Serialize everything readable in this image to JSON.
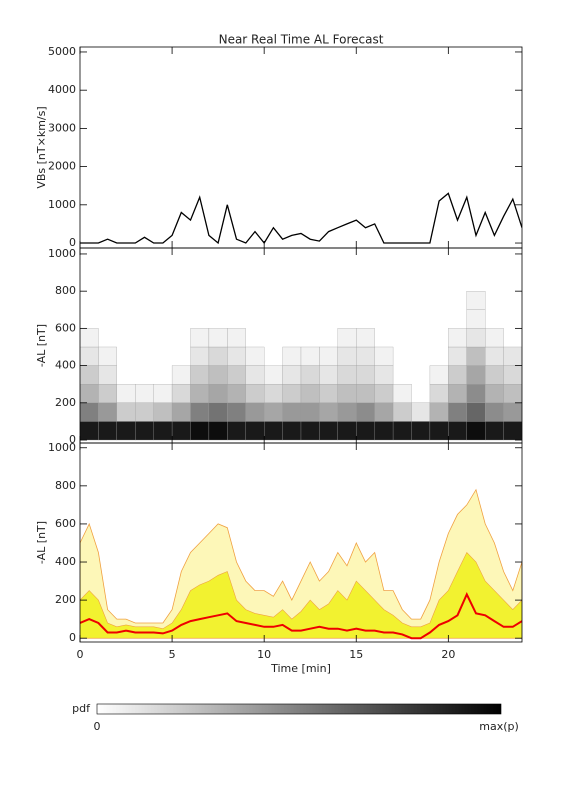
{
  "chart_data": [
    {
      "type": "line",
      "title": "Near Real Time AL Forecast",
      "ylabel": "VBs [nT×km/s]",
      "color": "#000000",
      "x": [
        0,
        0.5,
        1,
        1.5,
        2,
        2.5,
        3,
        3.5,
        4,
        4.5,
        5,
        5.5,
        6,
        6.5,
        7,
        7.5,
        8,
        8.5,
        9,
        9.5,
        10,
        10.5,
        11,
        11.5,
        12,
        12.5,
        13,
        13.5,
        14,
        14.5,
        15,
        15.5,
        16,
        16.5,
        17,
        17.5,
        18,
        18.5,
        19,
        19.5,
        20,
        20.5,
        21,
        21.5,
        22,
        22.5,
        23,
        23.5,
        24
      ],
      "values": [
        0,
        0,
        0,
        100,
        0,
        0,
        0,
        150,
        0,
        0,
        200,
        800,
        600,
        1200,
        200,
        0,
        1000,
        100,
        0,
        300,
        0,
        400,
        100,
        200,
        250,
        100,
        50,
        300,
        400,
        500,
        600,
        400,
        500,
        0,
        0,
        0,
        0,
        0,
        0,
        1100,
        1300,
        600,
        1200,
        200,
        800,
        200,
        700,
        1150,
        400
      ],
      "xlim": [
        0,
        24
      ],
      "ylim": [
        -130,
        5130
      ],
      "yticks": [
        0,
        1000,
        2000,
        3000,
        4000,
        5000
      ]
    },
    {
      "type": "heatmap",
      "ylabel": "-AL [nT]",
      "xlim": [
        0,
        24
      ],
      "ylim": [
        -16,
        1032
      ],
      "yticks": [
        0,
        200,
        400,
        600,
        800,
        1000
      ],
      "time_bins": [
        0,
        1,
        2,
        3,
        4,
        5,
        6,
        7,
        8,
        9,
        10,
        11,
        12,
        13,
        14,
        15,
        16,
        17,
        18,
        19,
        20,
        21,
        22,
        23,
        24
      ],
      "al_bins": [
        0,
        100,
        200,
        300,
        400,
        500,
        600,
        700,
        800
      ],
      "pdf": [
        [
          0.9,
          0.5,
          0.3,
          0.2,
          0.1,
          0.05,
          0,
          0
        ],
        [
          0.9,
          0.4,
          0.2,
          0.1,
          0.05,
          0,
          0,
          0
        ],
        [
          0.9,
          0.2,
          0.05,
          0,
          0,
          0,
          0,
          0
        ],
        [
          0.9,
          0.2,
          0.05,
          0,
          0,
          0,
          0,
          0
        ],
        [
          0.9,
          0.25,
          0.05,
          0,
          0,
          0,
          0,
          0
        ],
        [
          0.9,
          0.35,
          0.15,
          0.05,
          0,
          0,
          0,
          0
        ],
        [
          0.95,
          0.5,
          0.3,
          0.2,
          0.1,
          0.05,
          0,
          0
        ],
        [
          0.95,
          0.55,
          0.35,
          0.25,
          0.15,
          0.05,
          0,
          0
        ],
        [
          0.9,
          0.5,
          0.3,
          0.2,
          0.1,
          0.05,
          0,
          0
        ],
        [
          0.9,
          0.4,
          0.2,
          0.1,
          0.05,
          0,
          0,
          0
        ],
        [
          0.9,
          0.35,
          0.15,
          0.05,
          0,
          0,
          0,
          0
        ],
        [
          0.9,
          0.4,
          0.2,
          0.1,
          0.05,
          0,
          0,
          0
        ],
        [
          0.9,
          0.4,
          0.25,
          0.15,
          0.05,
          0,
          0,
          0
        ],
        [
          0.9,
          0.35,
          0.2,
          0.1,
          0.05,
          0,
          0,
          0
        ],
        [
          0.9,
          0.4,
          0.25,
          0.15,
          0.1,
          0.05,
          0,
          0
        ],
        [
          0.9,
          0.45,
          0.25,
          0.15,
          0.1,
          0.05,
          0,
          0
        ],
        [
          0.9,
          0.35,
          0.2,
          0.1,
          0.05,
          0,
          0,
          0
        ],
        [
          0.9,
          0.2,
          0.05,
          0,
          0,
          0,
          0,
          0
        ],
        [
          0.9,
          0.1,
          0,
          0,
          0,
          0,
          0,
          0
        ],
        [
          0.9,
          0.3,
          0.15,
          0.05,
          0,
          0,
          0,
          0
        ],
        [
          0.9,
          0.5,
          0.3,
          0.2,
          0.1,
          0.05,
          0,
          0
        ],
        [
          0.95,
          0.6,
          0.45,
          0.35,
          0.25,
          0.1,
          0.05,
          0.05
        ],
        [
          0.9,
          0.45,
          0.3,
          0.2,
          0.1,
          0.05,
          0,
          0
        ],
        [
          0.9,
          0.4,
          0.25,
          0.15,
          0.1,
          0,
          0,
          0
        ]
      ]
    },
    {
      "type": "band",
      "ylabel": "-AL [nT]",
      "xlabel": "Time [min]",
      "xlim": [
        0,
        24
      ],
      "ylim": [
        -20,
        1025
      ],
      "xticks": [
        0,
        5,
        10,
        15,
        20
      ],
      "yticks": [
        0,
        200,
        400,
        600,
        800,
        1000
      ],
      "x": [
        0,
        0.5,
        1,
        1.5,
        2,
        2.5,
        3,
        3.5,
        4,
        4.5,
        5,
        5.5,
        6,
        6.5,
        7,
        7.5,
        8,
        8.5,
        9,
        9.5,
        10,
        10.5,
        11,
        11.5,
        12,
        12.5,
        13,
        13.5,
        14,
        14.5,
        15,
        15.5,
        16,
        16.5,
        17,
        17.5,
        18,
        18.5,
        19,
        19.5,
        20,
        20.5,
        21,
        21.5,
        22,
        22.5,
        23,
        23.5,
        24
      ],
      "outer_high": [
        500,
        600,
        450,
        150,
        100,
        100,
        80,
        80,
        80,
        80,
        150,
        350,
        450,
        500,
        550,
        600,
        580,
        400,
        300,
        250,
        250,
        220,
        300,
        200,
        300,
        400,
        300,
        350,
        450,
        380,
        500,
        400,
        450,
        250,
        250,
        150,
        100,
        100,
        200,
        400,
        550,
        650,
        700,
        780,
        600,
        500,
        350,
        250,
        400
      ],
      "inner_high": [
        200,
        250,
        200,
        80,
        60,
        70,
        60,
        60,
        60,
        50,
        80,
        150,
        250,
        280,
        300,
        330,
        350,
        200,
        150,
        130,
        120,
        110,
        150,
        100,
        140,
        200,
        150,
        180,
        250,
        200,
        300,
        250,
        200,
        150,
        120,
        80,
        60,
        60,
        80,
        200,
        250,
        350,
        450,
        400,
        300,
        250,
        200,
        150,
        200
      ],
      "median": [
        80,
        100,
        80,
        30,
        30,
        40,
        30,
        30,
        30,
        25,
        40,
        70,
        90,
        100,
        110,
        120,
        130,
        90,
        80,
        70,
        60,
        60,
        70,
        40,
        40,
        50,
        60,
        50,
        50,
        40,
        50,
        40,
        40,
        30,
        30,
        20,
        0,
        0,
        30,
        70,
        90,
        120,
        230,
        130,
        120,
        90,
        60,
        60,
        90
      ],
      "outer_color": "#fdf7b8",
      "inner_color": "#f2f230",
      "edge_color": "#f0a040",
      "median_color": "#ee0000"
    }
  ],
  "colorbar": {
    "label": "pdf",
    "min_label": "0",
    "max_label": "max(p)"
  }
}
